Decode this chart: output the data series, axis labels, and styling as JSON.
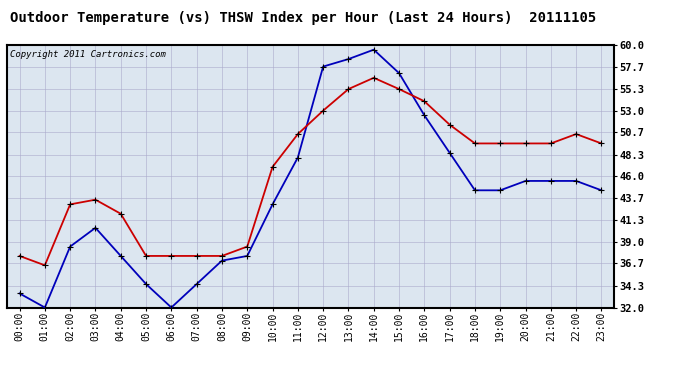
{
  "title": "Outdoor Temperature (vs) THSW Index per Hour (Last 24 Hours)  20111105",
  "copyright": "Copyright 2011 Cartronics.com",
  "hours": [
    "00:00",
    "01:00",
    "02:00",
    "03:00",
    "04:00",
    "05:00",
    "06:00",
    "07:00",
    "08:00",
    "09:00",
    "10:00",
    "11:00",
    "12:00",
    "13:00",
    "14:00",
    "15:00",
    "16:00",
    "17:00",
    "18:00",
    "19:00",
    "20:00",
    "21:00",
    "22:00",
    "23:00"
  ],
  "temp_blue": [
    33.5,
    32.0,
    38.5,
    40.5,
    37.5,
    34.5,
    32.0,
    34.5,
    37.0,
    37.5,
    43.0,
    48.0,
    57.7,
    58.5,
    59.5,
    57.0,
    52.5,
    48.5,
    44.5,
    44.5,
    45.5,
    45.5,
    45.5,
    44.5
  ],
  "thsw_red": [
    37.5,
    36.5,
    43.0,
    43.5,
    42.0,
    37.5,
    37.5,
    37.5,
    37.5,
    38.5,
    47.0,
    50.5,
    53.0,
    55.3,
    56.5,
    55.3,
    54.0,
    51.5,
    49.5,
    49.5,
    49.5,
    49.5,
    50.5,
    49.5
  ],
  "ylim": [
    32.0,
    60.0
  ],
  "yticks": [
    32.0,
    34.3,
    36.7,
    39.0,
    41.3,
    43.7,
    46.0,
    48.3,
    50.7,
    53.0,
    55.3,
    57.7,
    60.0
  ],
  "blue_color": "#0000bb",
  "red_color": "#cc0000",
  "plot_bg_color": "#dce6f0",
  "fig_bg_color": "#ffffff",
  "grid_color": "#aaaacc",
  "title_fontsize": 10,
  "copyright_fontsize": 6.5,
  "tick_fontsize": 7,
  "ytick_fontsize": 7.5
}
